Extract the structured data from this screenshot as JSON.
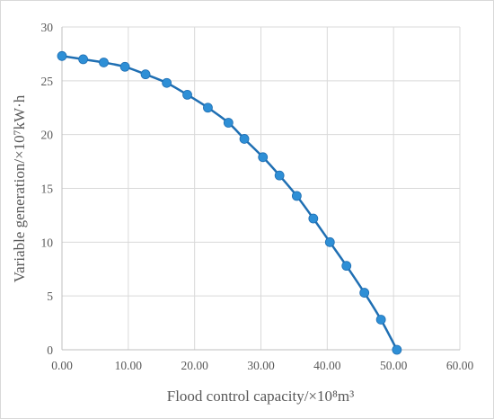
{
  "chart_data": {
    "type": "scatter",
    "xlabel": "Flood control capacity/×10⁸m³",
    "ylabel": "Variable generation/×10⁷kW·h",
    "xlim": [
      0,
      60
    ],
    "ylim": [
      0,
      30
    ],
    "x_ticks": [
      "0.00",
      "10.00",
      "20.00",
      "30.00",
      "40.00",
      "50.00",
      "60.00"
    ],
    "y_ticks": [
      "0",
      "5",
      "10",
      "15",
      "20",
      "25",
      "30"
    ],
    "grid": true,
    "legend": "none",
    "series": [
      {
        "marker_color": "#2e8fd6",
        "line_color": "#1f6fb3",
        "smooth_line": true,
        "points": [
          {
            "x": 0.0,
            "y": 27.3
          },
          {
            "x": 3.2,
            "y": 27.0
          },
          {
            "x": 6.3,
            "y": 26.7
          },
          {
            "x": 9.5,
            "y": 26.3
          },
          {
            "x": 12.6,
            "y": 25.6
          },
          {
            "x": 15.8,
            "y": 24.8
          },
          {
            "x": 18.9,
            "y": 23.7
          },
          {
            "x": 22.0,
            "y": 22.5
          },
          {
            "x": 25.1,
            "y": 21.1
          },
          {
            "x": 27.5,
            "y": 19.6
          },
          {
            "x": 30.3,
            "y": 17.9
          },
          {
            "x": 32.8,
            "y": 16.2
          },
          {
            "x": 35.4,
            "y": 14.3
          },
          {
            "x": 37.9,
            "y": 12.2
          },
          {
            "x": 40.4,
            "y": 10.0
          },
          {
            "x": 42.9,
            "y": 7.8
          },
          {
            "x": 45.6,
            "y": 5.3
          },
          {
            "x": 48.1,
            "y": 2.8
          },
          {
            "x": 50.5,
            "y": 0.0
          }
        ]
      }
    ]
  }
}
